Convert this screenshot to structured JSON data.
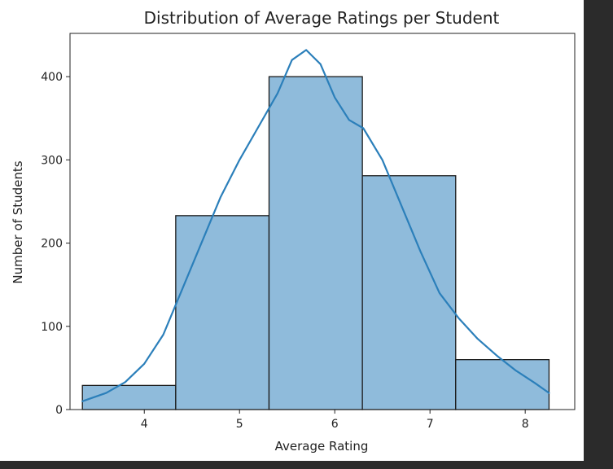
{
  "chart_data": {
    "type": "bar",
    "title": "Distribution of Average Ratings per Student",
    "xlabel": "Average Rating",
    "ylabel": "Number of Students",
    "xlim": [
      3.22,
      8.52
    ],
    "ylim": [
      0,
      452
    ],
    "x_ticks": [
      4,
      5,
      6,
      7,
      8
    ],
    "y_ticks": [
      0,
      100,
      200,
      300,
      400
    ],
    "grid": false,
    "bins": [
      {
        "start": 3.35,
        "end": 4.33,
        "count": 29
      },
      {
        "start": 4.33,
        "end": 5.31,
        "count": 233
      },
      {
        "start": 5.31,
        "end": 6.29,
        "count": 400
      },
      {
        "start": 6.29,
        "end": 7.27,
        "count": 281
      },
      {
        "start": 7.27,
        "end": 8.25,
        "count": 60
      }
    ],
    "kde": {
      "x": [
        3.35,
        3.6,
        3.8,
        4.0,
        4.2,
        4.4,
        4.6,
        4.8,
        5.0,
        5.2,
        5.4,
        5.55,
        5.7,
        5.85,
        6.0,
        6.15,
        6.3,
        6.5,
        6.7,
        6.9,
        7.1,
        7.3,
        7.5,
        7.7,
        7.9,
        8.1,
        8.25
      ],
      "y": [
        10,
        20,
        33,
        55,
        90,
        145,
        200,
        255,
        300,
        340,
        380,
        420,
        432,
        415,
        375,
        348,
        338,
        300,
        245,
        190,
        140,
        110,
        85,
        65,
        47,
        32,
        20
      ]
    },
    "bar_color": "#8fbbdb",
    "bar_edge_color": "#1a1a1a",
    "line_color": "#2b7fba"
  }
}
